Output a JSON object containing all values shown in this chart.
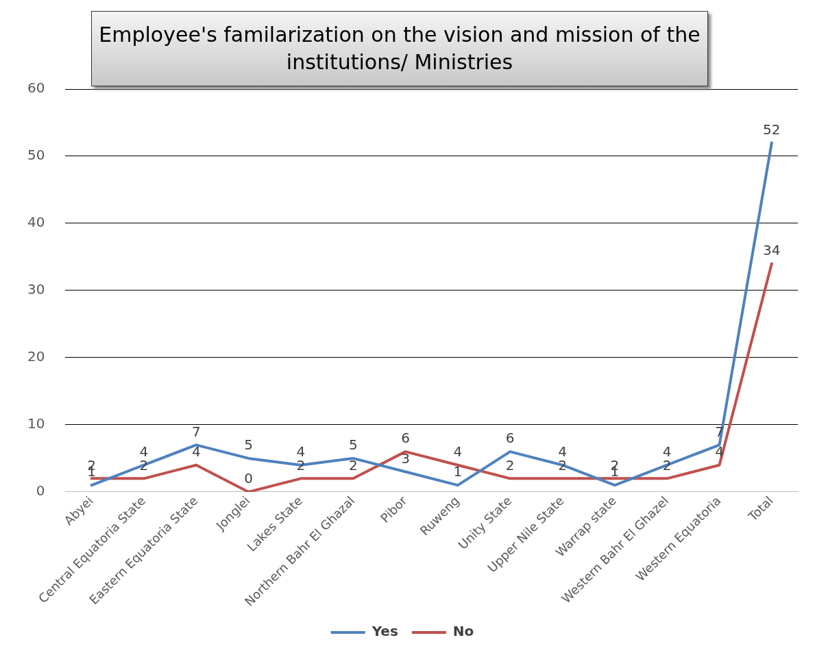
{
  "chart_data": {
    "type": "line",
    "title": "Employee's familarization on the vision and mission of the institutions/ Ministries",
    "categories": [
      "Abyei",
      "Central Equatoria State",
      "Eastern Equatoria State",
      "Jonglei",
      "Lakes State",
      "Northern Bahr El Ghazal",
      "Pibor",
      "Ruweng",
      "Unity State",
      "Upper Nile State",
      "Warrap state",
      "Western Bahr El Ghazel",
      "Western Equatoria",
      "Total"
    ],
    "series": [
      {
        "name": "Yes",
        "color": "#4f81bd",
        "values": [
          1,
          4,
          7,
          5,
          4,
          5,
          3,
          1,
          6,
          4,
          1,
          4,
          7,
          52
        ]
      },
      {
        "name": "No",
        "color": "#c0504d",
        "values": [
          2,
          2,
          4,
          0,
          2,
          2,
          6,
          4,
          2,
          2,
          2,
          2,
          4,
          34
        ]
      }
    ],
    "ylim": [
      0,
      60
    ],
    "yticks": [
      0,
      10,
      20,
      30,
      40,
      50,
      60
    ],
    "grid": "y",
    "legend": "bottom",
    "data_labels": true,
    "marker": "none",
    "line_style": "solid"
  }
}
